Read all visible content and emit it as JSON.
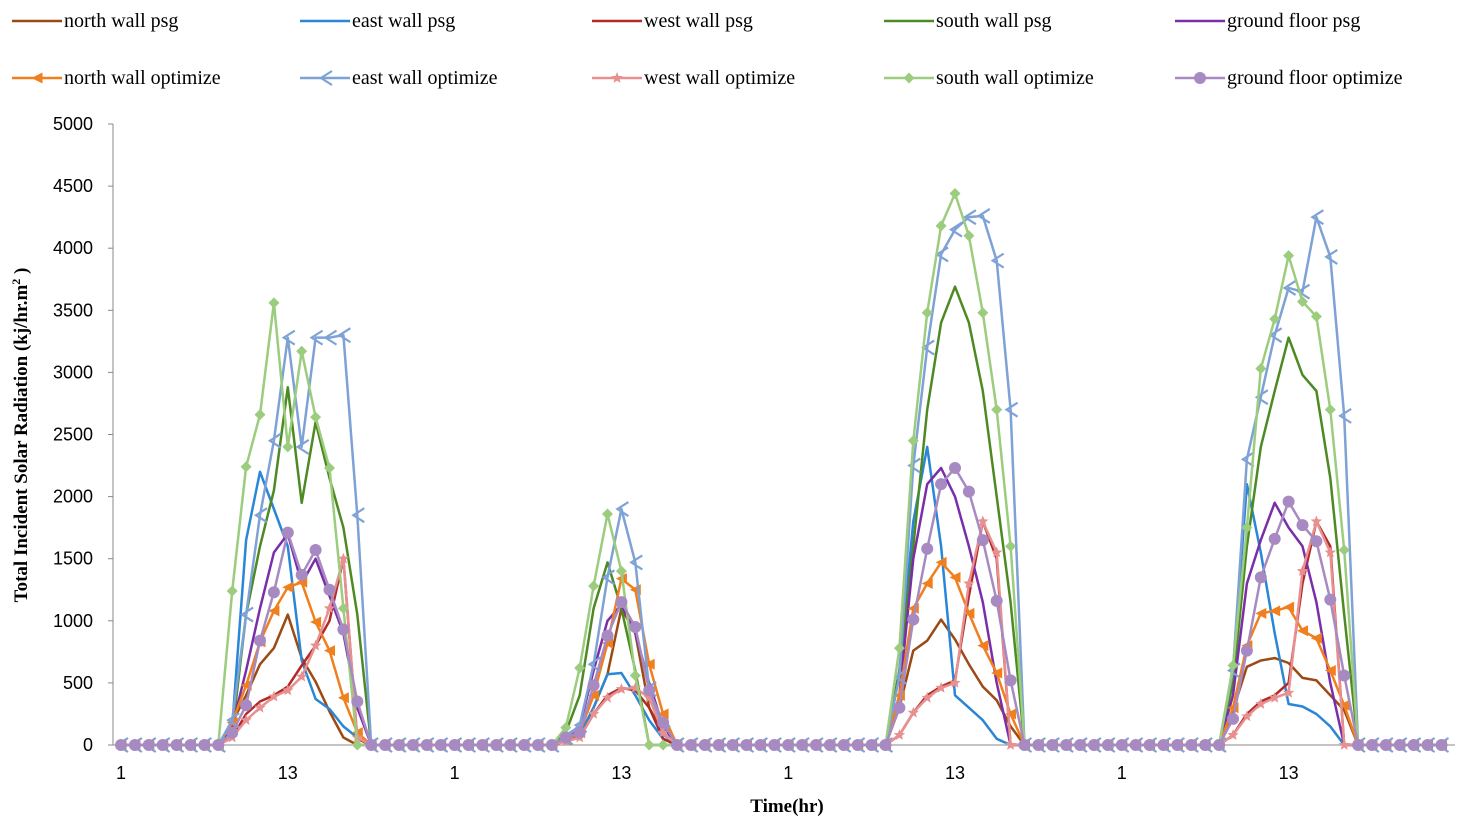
{
  "chart_data": {
    "type": "line",
    "title": "",
    "xlabel": "Time(hr)",
    "ylabel": "Total Incident Solar Radiation (kj/hr.m2 )",
    "ylabel_main": "Total Incident Solar Radiation (kj/hr.m",
    "ylabel_sup": "2",
    "ylabel_end": " )",
    "ylim": [
      0,
      5000
    ],
    "yticks": [
      "0",
      "500",
      "1000",
      "1500",
      "2000",
      "2500",
      "3000",
      "3500",
      "4000",
      "4500",
      "5000"
    ],
    "x_tick_labels": [
      {
        "index": 0,
        "label": "1"
      },
      {
        "index": 12,
        "label": "13"
      },
      {
        "index": 24,
        "label": "1"
      },
      {
        "index": 36,
        "label": "13"
      },
      {
        "index": 48,
        "label": "1"
      },
      {
        "index": 60,
        "label": "13"
      },
      {
        "index": 72,
        "label": "1"
      },
      {
        "index": 84,
        "label": "13"
      }
    ],
    "hours": 96,
    "grid": false,
    "legend_position": "top",
    "series": [
      {
        "name": "north wall psg",
        "color": "#9c4a14",
        "marker": "none",
        "peaks": [
          {
            "s": 8,
            "v": [
              180,
              400,
              650,
              780,
              1050,
              700,
              510,
              270,
              60,
              0
            ]
          },
          {
            "s": 32,
            "v": [
              40,
              80,
              300,
              570,
              1100,
              900,
              300,
              100,
              0
            ]
          },
          {
            "s": 56,
            "v": [
              300,
              760,
              840,
              1010,
              850,
              650,
              470,
              360,
              150,
              0
            ]
          },
          {
            "s": 80,
            "v": [
              280,
              630,
              680,
              700,
              660,
              540,
              520,
              400,
              280,
              0
            ]
          }
        ]
      },
      {
        "name": "east wall psg",
        "color": "#2a86d6",
        "marker": "none",
        "peaks": [
          {
            "s": 8,
            "v": [
              150,
              1650,
              2200,
              1900,
              1600,
              680,
              370,
              290,
              150,
              60,
              0
            ]
          },
          {
            "s": 32,
            "v": [
              40,
              80,
              300,
              570,
              580,
              400,
              200,
              50,
              0
            ]
          },
          {
            "s": 56,
            "v": [
              600,
              1800,
              2400,
              1600,
              400,
              300,
              200,
              50,
              0
            ]
          },
          {
            "s": 80,
            "v": [
              600,
              2100,
              1550,
              900,
              330,
              310,
              250,
              150,
              0
            ]
          }
        ]
      },
      {
        "name": "west wall psg",
        "color": "#b02a2a",
        "marker": "none",
        "peaks": [
          {
            "s": 8,
            "v": [
              60,
              250,
              350,
              400,
              470,
              640,
              800,
              1000,
              1500,
              50,
              0
            ]
          },
          {
            "s": 32,
            "v": [
              30,
              60,
              250,
              400,
              460,
              440,
              300,
              50,
              0
            ]
          },
          {
            "s": 56,
            "v": [
              80,
              260,
              400,
              470,
              520,
              1200,
              1800,
              1500,
              0
            ]
          },
          {
            "s": 80,
            "v": [
              80,
              250,
              350,
              400,
              500,
              1300,
              1800,
              1600,
              0
            ]
          }
        ]
      },
      {
        "name": "south wall psg",
        "color": "#4e8a24",
        "marker": "none",
        "peaks": [
          {
            "s": 8,
            "v": [
              100,
              1050,
              1600,
              2050,
              2880,
              1950,
              2600,
              2150,
              1750,
              1050,
              0
            ]
          },
          {
            "s": 32,
            "v": [
              100,
              400,
              1100,
              1470,
              1100,
              600,
              0
            ]
          },
          {
            "s": 56,
            "v": [
              600,
              1600,
              2700,
              3400,
              3690,
              3400,
              2850,
              2000,
              1150,
              0
            ]
          },
          {
            "s": 80,
            "v": [
              500,
              1600,
              2400,
              2850,
              3280,
              2980,
              2850,
              2150,
              1050,
              0
            ]
          }
        ]
      },
      {
        "name": "ground floor psg",
        "color": "#7a2ea8",
        "marker": "none",
        "peaks": [
          {
            "s": 8,
            "v": [
              150,
              600,
              1100,
              1550,
              1700,
              1300,
              1500,
              1200,
              900,
              300,
              0
            ]
          },
          {
            "s": 32,
            "v": [
              50,
              150,
              600,
              1000,
              1130,
              900,
              500,
              150,
              0
            ]
          },
          {
            "s": 56,
            "v": [
              400,
              1500,
              2100,
              2230,
              2000,
              1600,
              1150,
              500,
              0
            ]
          },
          {
            "s": 80,
            "v": [
              400,
              1300,
              1650,
              1950,
              1750,
              1600,
              1150,
              500,
              0
            ]
          }
        ]
      },
      {
        "name": "north wall optimize",
        "color": "#f07f1e",
        "marker": "tri-left",
        "peaks": [
          {
            "s": 8,
            "v": [
              180,
              480,
              830,
              1080,
              1270,
              1310,
              990,
              760,
              380,
              100,
              0
            ]
          },
          {
            "s": 32,
            "v": [
              40,
              100,
              400,
              820,
              1340,
              1250,
              650,
              250,
              0
            ]
          },
          {
            "s": 56,
            "v": [
              400,
              1100,
              1300,
              1470,
              1350,
              1060,
              800,
              580,
              250,
              0
            ]
          },
          {
            "s": 80,
            "v": [
              300,
              800,
              1060,
              1080,
              1110,
              920,
              860,
              600,
              320,
              0
            ]
          }
        ]
      },
      {
        "name": "east wall optimize",
        "color": "#7ea2d6",
        "marker": "chevron-left",
        "peaks": [
          {
            "s": 8,
            "v": [
              200,
              1050,
              1850,
              2450,
              3280,
              2400,
              3280,
              3280,
              3300,
              1850,
              0
            ]
          },
          {
            "s": 32,
            "v": [
              60,
              160,
              650,
              1350,
              1900,
              1470,
              450,
              100,
              0
            ]
          },
          {
            "s": 56,
            "v": [
              550,
              2250,
              3200,
              3950,
              4150,
              4250,
              4260,
              3900,
              2700,
              0
            ]
          },
          {
            "s": 80,
            "v": [
              600,
              2300,
              2800,
              3300,
              3680,
              3650,
              4250,
              3930,
              2650,
              0
            ]
          }
        ]
      },
      {
        "name": "west wall optimize",
        "color": "#e89090",
        "marker": "star",
        "peaks": [
          {
            "s": 8,
            "v": [
              60,
              200,
              300,
              390,
              440,
              550,
              800,
              1100,
              1500,
              60,
              0
            ]
          },
          {
            "s": 32,
            "v": [
              30,
              60,
              250,
              380,
              450,
              460,
              380,
              100,
              0
            ]
          },
          {
            "s": 56,
            "v": [
              80,
              260,
              380,
              460,
              500,
              1300,
              1800,
              1550,
              0
            ]
          },
          {
            "s": 80,
            "v": [
              80,
              230,
              330,
              380,
              420,
              1400,
              1800,
              1550,
              0
            ]
          }
        ]
      },
      {
        "name": "south wall optimize",
        "color": "#9ccc7e",
        "marker": "diamond",
        "peaks": [
          {
            "s": 8,
            "v": [
              1240,
              2240,
              2660,
              3560,
              2400,
              3170,
              2640,
              2230,
              1100,
              0
            ]
          },
          {
            "s": 32,
            "v": [
              140,
              620,
              1280,
              1860,
              1400,
              560,
              0
            ]
          },
          {
            "s": 56,
            "v": [
              780,
              2450,
              3480,
              4180,
              4440,
              4100,
              3480,
              2700,
              1600,
              0
            ]
          },
          {
            "s": 80,
            "v": [
              640,
              1750,
              3030,
              3430,
              3940,
              3570,
              3450,
              2700,
              1570,
              0
            ]
          }
        ]
      },
      {
        "name": "ground floor optimize",
        "color": "#a88ac2",
        "marker": "circle",
        "peaks": [
          {
            "s": 8,
            "v": [
              100,
              320,
              840,
              1230,
              1710,
              1370,
              1570,
              1250,
              930,
              350,
              0
            ]
          },
          {
            "s": 32,
            "v": [
              60,
              100,
              480,
              880,
              1150,
              950,
              440,
              180,
              0
            ]
          },
          {
            "s": 56,
            "v": [
              300,
              1010,
              1580,
              2100,
              2230,
              2040,
              1650,
              1160,
              520,
              0
            ]
          },
          {
            "s": 80,
            "v": [
              210,
              760,
              1350,
              1660,
              1960,
              1770,
              1640,
              1170,
              560,
              0
            ]
          }
        ]
      }
    ]
  }
}
